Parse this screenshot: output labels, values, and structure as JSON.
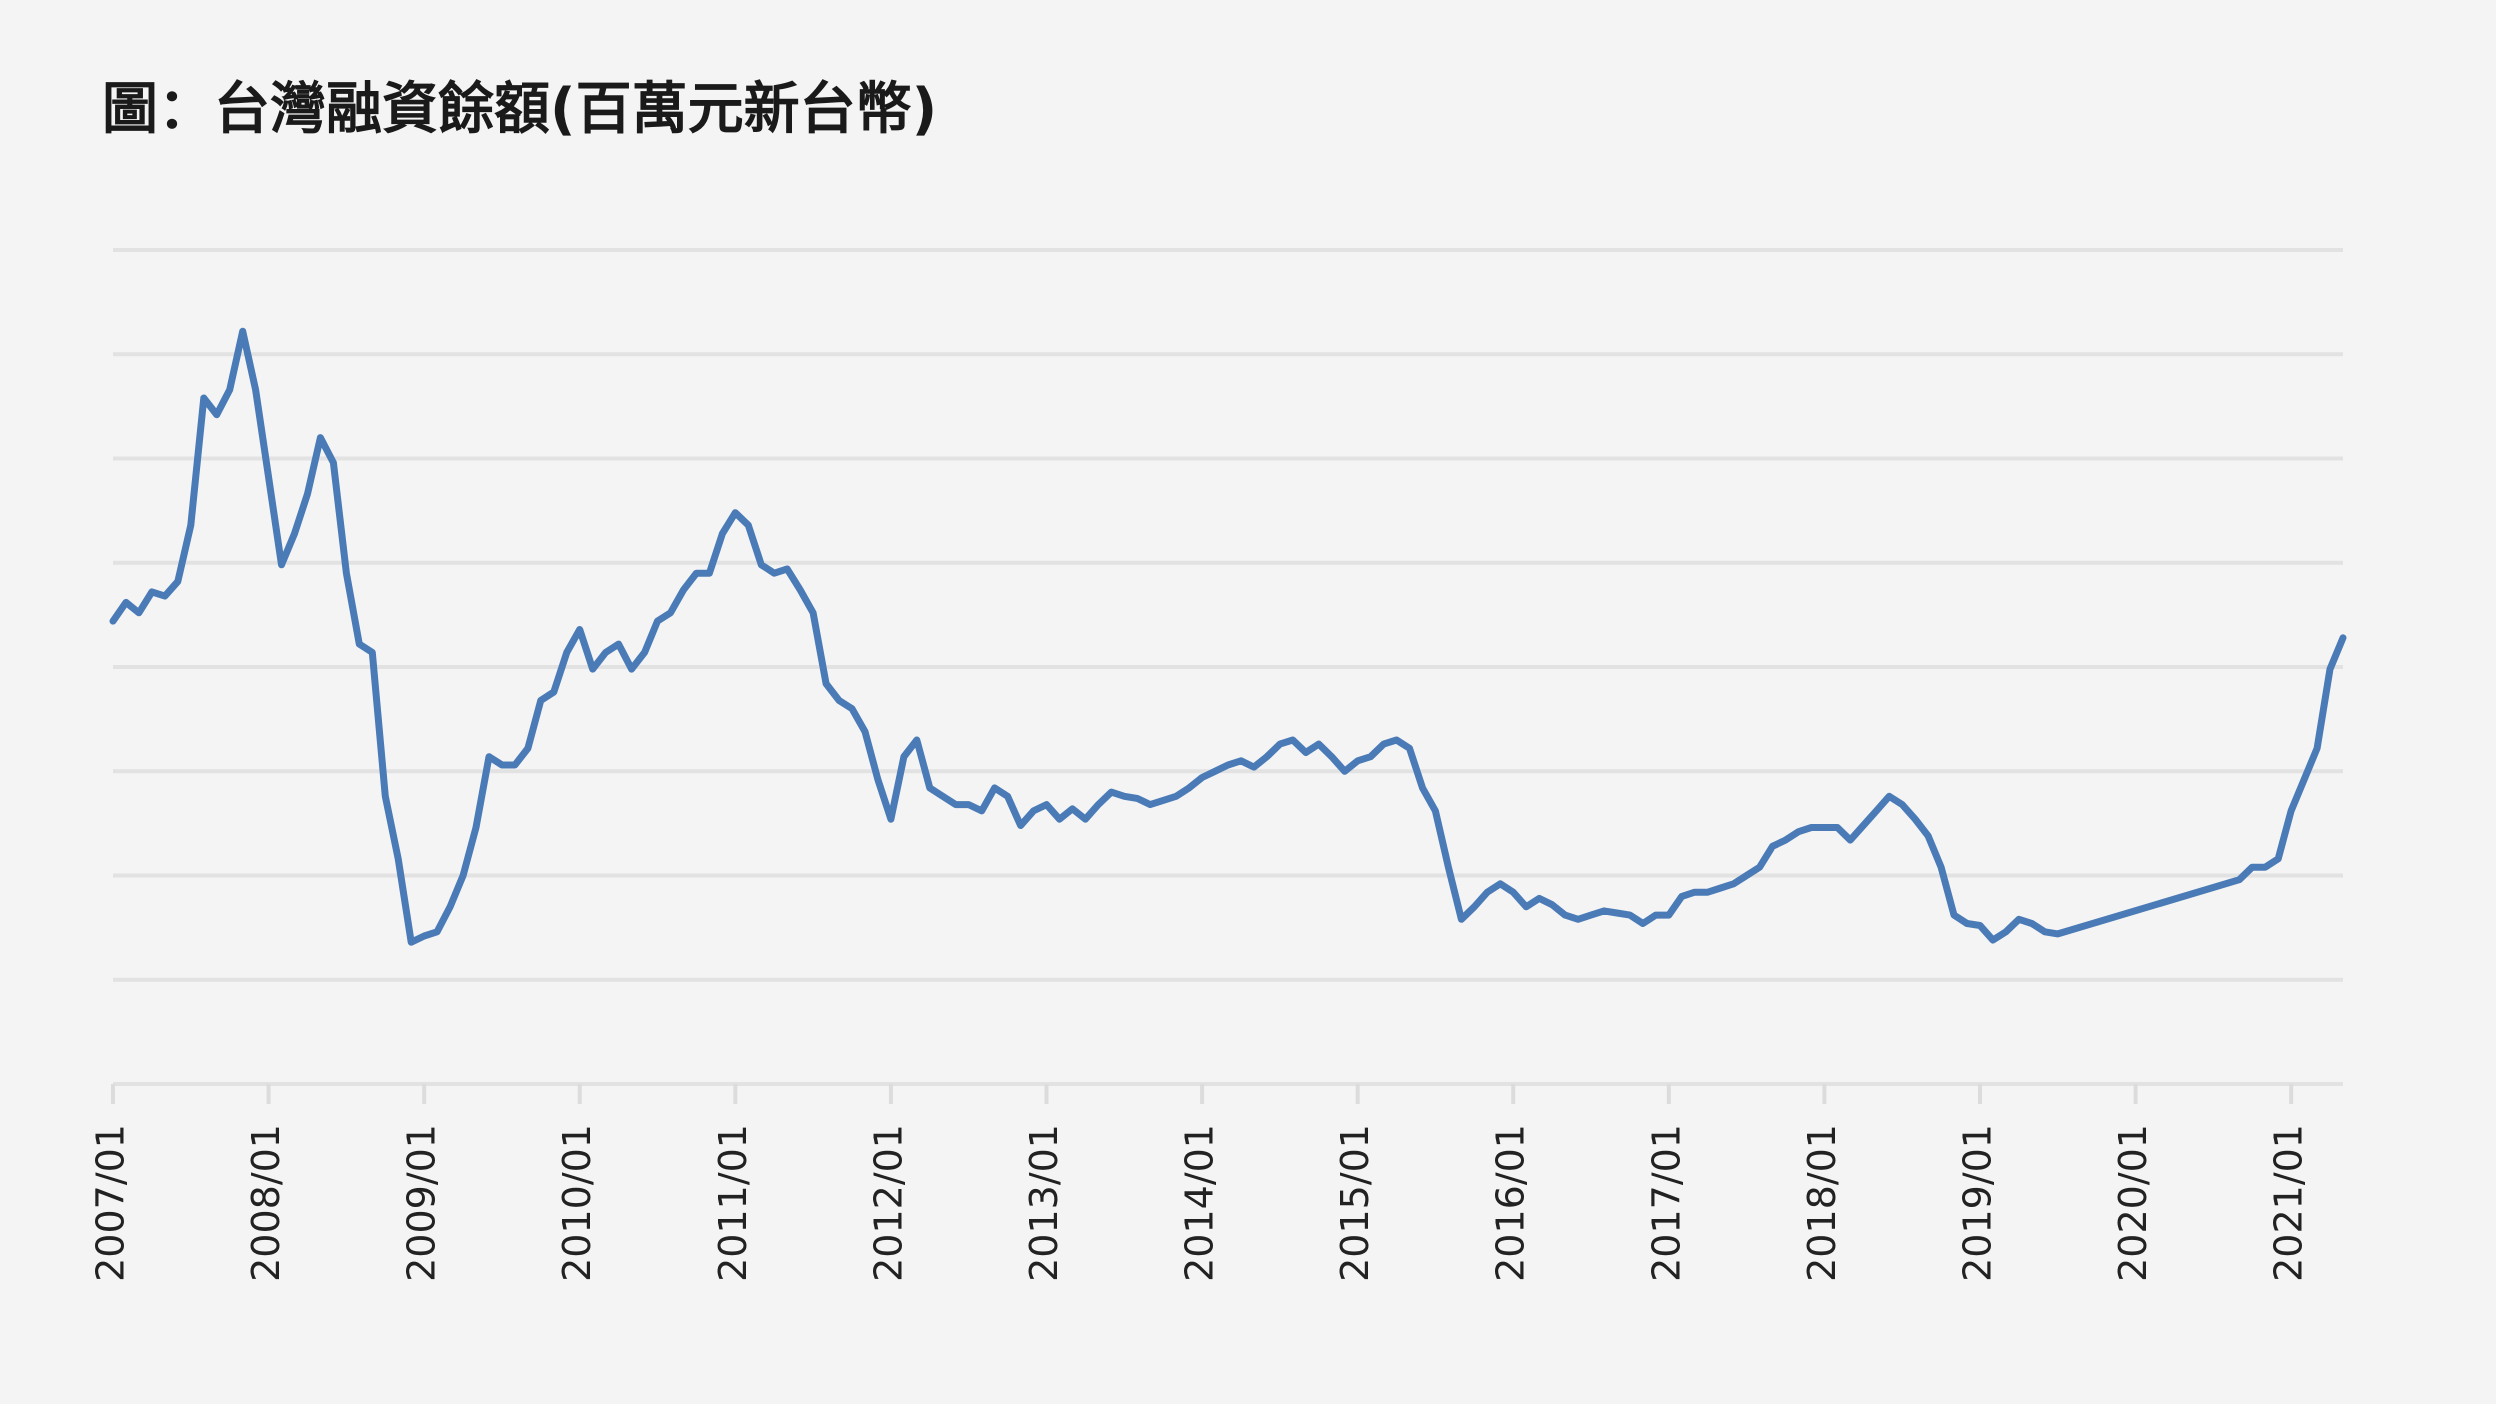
{
  "chart_data": {
    "type": "line",
    "title": "圖：台灣融資餘額(百萬元新台幣)",
    "color": "#4a7bb7",
    "grid": true,
    "ytick_labels": false,
    "ylim": [
      100000,
      500000
    ],
    "yticks": [
      100000,
      150000,
      200000,
      250000,
      300000,
      350000,
      400000,
      450000,
      500000
    ],
    "xlim": [
      "2007/01",
      "2021/05"
    ],
    "xticks": [
      "2007/01",
      "2008/01",
      "2009/01",
      "2010/01",
      "2011/01",
      "2012/01",
      "2013/01",
      "2014/01",
      "2015/01",
      "2016/01",
      "2017/01",
      "2018/01",
      "2019/01",
      "2020/01",
      "2021/01"
    ],
    "x": [
      "2007/01",
      "2007/02",
      "2007/03",
      "2007/04",
      "2007/05",
      "2007/06",
      "2007/07",
      "2007/08",
      "2007/09",
      "2007/10",
      "2007/11",
      "2007/12",
      "2008/01",
      "2008/02",
      "2008/03",
      "2008/04",
      "2008/05",
      "2008/06",
      "2008/07",
      "2008/08",
      "2008/09",
      "2008/10",
      "2008/11",
      "2008/12",
      "2009/01",
      "2009/02",
      "2009/03",
      "2009/04",
      "2009/05",
      "2009/06",
      "2009/07",
      "2009/08",
      "2009/09",
      "2009/10",
      "2009/11",
      "2009/12",
      "2010/01",
      "2010/02",
      "2010/03",
      "2010/04",
      "2010/05",
      "2010/06",
      "2010/07",
      "2010/08",
      "2010/09",
      "2010/10",
      "2010/11",
      "2010/12",
      "2011/01",
      "2011/02",
      "2011/03",
      "2011/04",
      "2011/05",
      "2011/06",
      "2011/07",
      "2011/08",
      "2011/09",
      "2011/10",
      "2011/11",
      "2011/12",
      "2012/01",
      "2012/02",
      "2012/03",
      "2012/04",
      "2012/05",
      "2012/06",
      "2012/07",
      "2012/08",
      "2012/09",
      "2012/10",
      "2012/11",
      "2012/12",
      "2013/01",
      "2013/02",
      "2013/03",
      "2013/04",
      "2013/05",
      "2013/06",
      "2013/07",
      "2013/08",
      "2013/09",
      "2013/10",
      "2013/11",
      "2013/12",
      "2014/01",
      "2014/02",
      "2014/03",
      "2014/04",
      "2014/05",
      "2014/06",
      "2014/07",
      "2014/08",
      "2014/09",
      "2014/10",
      "2014/11",
      "2014/12",
      "2015/01",
      "2015/02",
      "2015/03",
      "2015/04",
      "2015/05",
      "2015/06",
      "2015/07",
      "2015/08",
      "2015/09",
      "2015/10",
      "2015/11",
      "2015/12",
      "2016/01",
      "2016/02",
      "2016/03",
      "2016/04",
      "2016/05",
      "2016/06",
      "2016/07",
      "2016/08",
      "2016/09",
      "2016/10",
      "2016/11",
      "2016/12",
      "2017/01",
      "2017/02",
      "2017/03",
      "2017/04",
      "2017/05",
      "2017/06",
      "2017/07",
      "2017/08",
      "2017/09",
      "2017/10",
      "2017/11",
      "2017/12",
      "2018/01",
      "2018/02",
      "2018/03",
      "2018/04",
      "2018/05",
      "2018/06",
      "2018/07",
      "2018/08",
      "2018/09",
      "2018/10",
      "2018/11",
      "2018/12",
      "2019/01",
      "2019/02",
      "2019/03",
      "2019/04",
      "2019/05",
      "2019/06",
      "2019/07",
      "2020/09",
      "2020/10",
      "2020/11",
      "2020/12",
      "2021/01",
      "2021/02",
      "2021/03",
      "2021/04",
      "2021/05"
    ],
    "values": [
      322000,
      331000,
      326000,
      336000,
      334000,
      341000,
      368000,
      429000,
      421000,
      433000,
      461000,
      433000,
      391000,
      349000,
      364000,
      383000,
      410000,
      398000,
      345000,
      311000,
      307000,
      238000,
      208000,
      168000,
      171000,
      173000,
      185000,
      200000,
      223000,
      257000,
      253000,
      253000,
      261000,
      284000,
      288000,
      307000,
      318000,
      299000,
      307000,
      311000,
      299000,
      307000,
      322000,
      326000,
      337000,
      345000,
      345000,
      364000,
      374000,
      368000,
      349000,
      345000,
      347000,
      337000,
      326000,
      292000,
      284000,
      280000,
      269000,
      246000,
      227000,
      257000,
      265000,
      242000,
      238000,
      234000,
      234000,
      231000,
      242000,
      238000,
      224000,
      231000,
      234000,
      227000,
      232000,
      227000,
      234000,
      240000,
      238000,
      237000,
      234000,
      236000,
      238000,
      242000,
      247000,
      250000,
      253000,
      255000,
      252000,
      257000,
      263000,
      265000,
      259000,
      263000,
      257000,
      250000,
      255000,
      257000,
      263000,
      265000,
      261000,
      242000,
      231000,
      204000,
      179000,
      185000,
      192000,
      196000,
      192000,
      185000,
      189000,
      186000,
      181000,
      179000,
      181000,
      183000,
      182000,
      181000,
      177000,
      181000,
      181000,
      190000,
      192000,
      192000,
      194000,
      196000,
      200000,
      204000,
      214000,
      217000,
      221000,
      223000,
      223000,
      223000,
      217000,
      224000,
      231000,
      238000,
      234000,
      227000,
      219000,
      204000,
      181000,
      177000,
      176000,
      169000,
      173000,
      179000,
      177000,
      173000,
      172000,
      198000,
      204000,
      204000,
      208000,
      231000,
      246000,
      261000,
      299000,
      314000
    ]
  }
}
